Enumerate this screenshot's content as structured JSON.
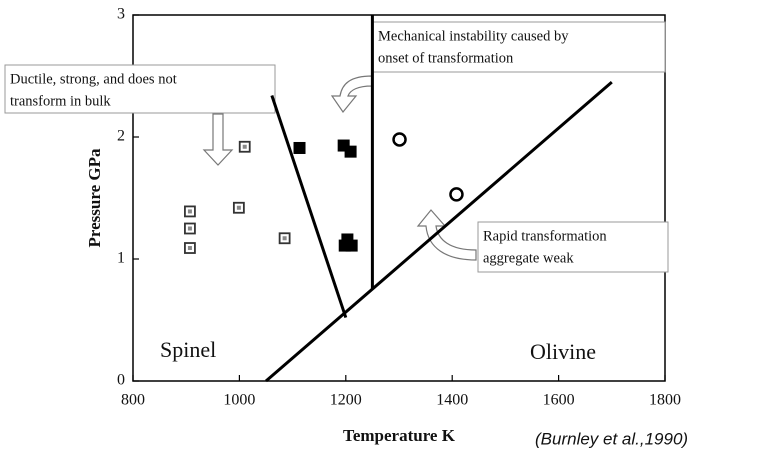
{
  "chart_data": {
    "type": "scatter",
    "xlabel": "Temperature K",
    "ylabel": "Pressure GPa",
    "xlim": [
      800,
      1800
    ],
    "ylim": [
      0,
      3
    ],
    "xticks": [
      800,
      1000,
      1200,
      1400,
      1600,
      1800
    ],
    "yticks": [
      0,
      1,
      2,
      3
    ],
    "series": [
      {
        "marker": "square-dot",
        "color": "#333333",
        "x": [
          907,
          907,
          907,
          1010,
          999,
          1085
        ],
        "values": [
          1.09,
          1.25,
          1.39,
          1.92,
          1.42,
          1.17
        ]
      },
      {
        "marker": "filled-square",
        "color": "#000000",
        "x": [
          1113,
          1196,
          1209,
          1203,
          1198,
          1211
        ],
        "values": [
          1.91,
          1.93,
          1.88,
          1.16,
          1.11,
          1.11
        ]
      },
      {
        "marker": "circle",
        "color": "#000000",
        "x": [
          1301,
          1408
        ],
        "values": [
          1.98,
          1.53
        ]
      }
    ],
    "lines": [
      {
        "color": "#000000",
        "x": [
          1050,
          1700
        ],
        "y": [
          0,
          2.45
        ]
      },
      {
        "color": "#000000",
        "x": [
          1200,
          1061
        ],
        "y": [
          0.52,
          2.34
        ]
      },
      {
        "color": "#000000",
        "x": [
          1250,
          1250
        ],
        "y": [
          0.75,
          3
        ]
      }
    ],
    "region_labels": [
      "Spinel",
      "Olivine"
    ],
    "annotations": [
      {
        "lines": [
          "Mechanical instability  caused by",
          "onset of transformation"
        ]
      },
      {
        "lines": [
          "Ductile, strong, and does not",
          "transform in bulk"
        ]
      },
      {
        "lines": [
          "Rapid transformation",
          "aggregate weak"
        ]
      }
    ],
    "citation": "(Burnley et al.,1990)"
  }
}
